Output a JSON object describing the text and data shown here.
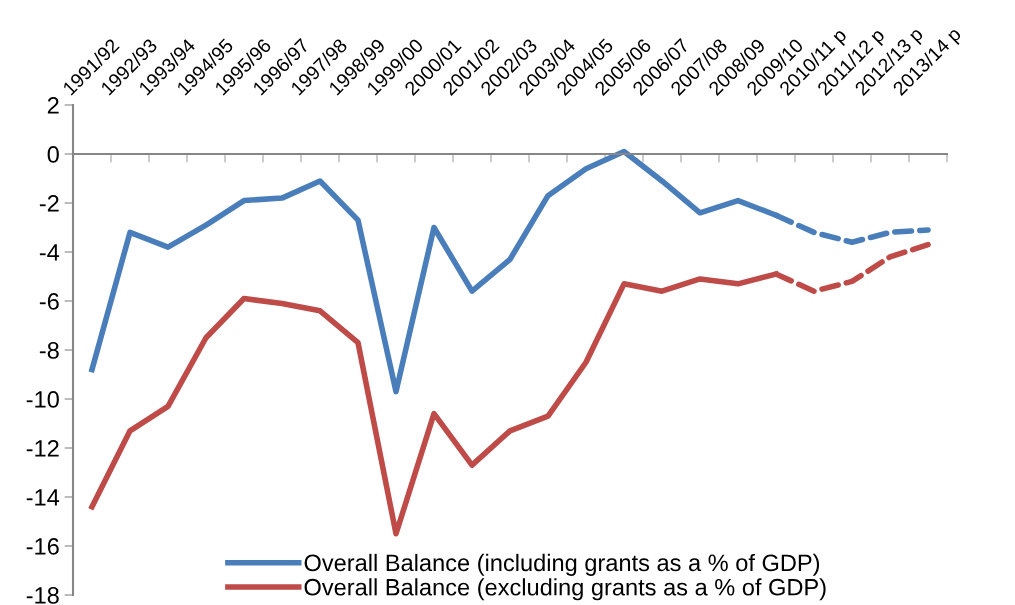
{
  "chart_data": {
    "type": "line",
    "categories": [
      "1991/92",
      "1992/93",
      "1993/94",
      "1994/95",
      "1995/96",
      "1996/97",
      "1997/98",
      "1998/99",
      "1999/00",
      "2000/01",
      "2001/02",
      "2002/03",
      "2003/04",
      "2004/05",
      "2005/06",
      "2006/07",
      "2007/08",
      "2008/09",
      "2009/10",
      "2010/11 p",
      "2011/12 p",
      "2012/13 p",
      "2013/14 p"
    ],
    "series": [
      {
        "name": "Overall Balance (including grants as a % of GDP)",
        "color": "#4a7ebb",
        "line_style": "solid",
        "values": [
          -8.8,
          -3.2,
          -3.8,
          -2.9,
          -1.9,
          -1.8,
          -1.1,
          -2.7,
          -9.7,
          -3.0,
          -5.6,
          -4.3,
          -1.7,
          -0.6,
          0.1,
          -1.1,
          -2.4,
          -1.9,
          -2.5,
          null,
          null,
          null,
          null
        ]
      },
      {
        "name": "Overall Balance (excluding grants as a % of GDP)",
        "color": "#be4b48",
        "line_style": "solid",
        "values": [
          -14.4,
          -11.3,
          -10.3,
          -7.5,
          -5.9,
          -6.1,
          -6.4,
          -7.7,
          -15.5,
          -10.6,
          -12.7,
          -11.3,
          -10.7,
          -8.5,
          -5.3,
          -5.6,
          -5.1,
          -5.3,
          -4.9,
          null,
          null,
          null,
          null
        ]
      },
      {
        "color": "#4a7ebb",
        "line_style": "dashed",
        "values": [
          null,
          null,
          null,
          null,
          null,
          null,
          null,
          null,
          null,
          null,
          null,
          null,
          null,
          null,
          null,
          null,
          null,
          null,
          -2.5,
          -3.2,
          -3.6,
          -3.2,
          -3.1
        ]
      },
      {
        "color": "#be4b48",
        "line_style": "dashed",
        "values": [
          null,
          null,
          null,
          null,
          null,
          null,
          null,
          null,
          null,
          null,
          null,
          null,
          null,
          null,
          null,
          null,
          null,
          null,
          -4.9,
          -5.6,
          -5.2,
          -4.2,
          -3.7
        ]
      }
    ],
    "ylim": [
      -18,
      2
    ],
    "yticks": [
      -18,
      -16,
      -14,
      -12,
      -10,
      -8,
      -6,
      -4,
      -2,
      0,
      2
    ],
    "legend": "bottom",
    "marker": "none"
  }
}
